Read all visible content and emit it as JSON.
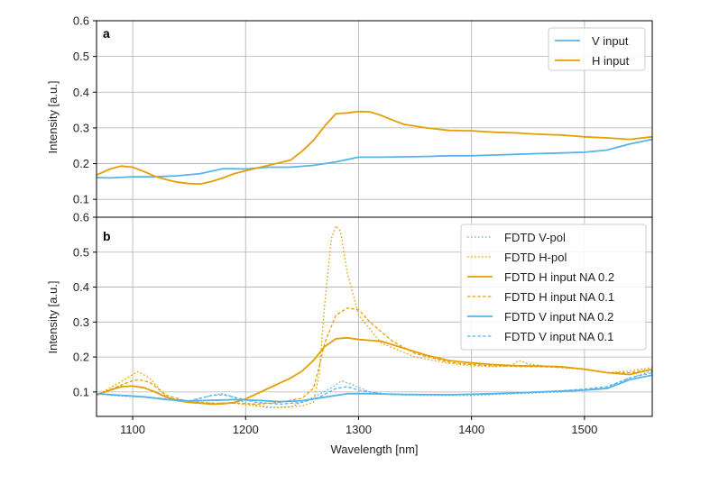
{
  "colors": {
    "blue": "#56B4E9",
    "orange": "#E69F00",
    "grid": "#b0b0b0",
    "axis": "#000000"
  },
  "chart_data": [
    {
      "panel": "a",
      "type": "line",
      "xlabel": "",
      "ylabel": "Intensity [a.u.]",
      "xlim": [
        1068,
        1560
      ],
      "ylim": [
        0.05,
        0.6
      ],
      "yticks": [
        0.1,
        0.2,
        0.3,
        0.4,
        0.5,
        0.6
      ],
      "ytick_labels": [
        "0.1",
        "0.2",
        "0.3",
        "0.4",
        "0.5",
        "0.6"
      ],
      "grid": true,
      "legend_position": "top-right",
      "series": [
        {
          "name": "V input",
          "color": "#56B4E9",
          "style": "solid",
          "x": [
            1068,
            1080,
            1100,
            1120,
            1140,
            1160,
            1180,
            1200,
            1220,
            1240,
            1260,
            1280,
            1300,
            1320,
            1340,
            1360,
            1380,
            1400,
            1420,
            1440,
            1460,
            1480,
            1500,
            1520,
            1540,
            1560
          ],
          "y": [
            0.161,
            0.16,
            0.163,
            0.163,
            0.166,
            0.172,
            0.186,
            0.185,
            0.19,
            0.19,
            0.195,
            0.205,
            0.218,
            0.218,
            0.219,
            0.22,
            0.222,
            0.222,
            0.224,
            0.226,
            0.228,
            0.23,
            0.232,
            0.238,
            0.255,
            0.268
          ]
        },
        {
          "name": "H input",
          "color": "#E69F00",
          "style": "solid",
          "x": [
            1068,
            1080,
            1090,
            1100,
            1110,
            1120,
            1130,
            1140,
            1150,
            1160,
            1170,
            1180,
            1190,
            1200,
            1220,
            1240,
            1250,
            1260,
            1270,
            1280,
            1290,
            1300,
            1310,
            1320,
            1330,
            1340,
            1360,
            1380,
            1400,
            1420,
            1440,
            1460,
            1480,
            1500,
            1520,
            1540,
            1560
          ],
          "y": [
            0.168,
            0.185,
            0.193,
            0.19,
            0.178,
            0.164,
            0.155,
            0.148,
            0.144,
            0.143,
            0.15,
            0.16,
            0.172,
            0.18,
            0.195,
            0.21,
            0.235,
            0.265,
            0.305,
            0.34,
            0.342,
            0.346,
            0.345,
            0.335,
            0.322,
            0.31,
            0.3,
            0.293,
            0.292,
            0.288,
            0.286,
            0.282,
            0.28,
            0.275,
            0.272,
            0.268,
            0.275
          ]
        }
      ]
    },
    {
      "panel": "b",
      "type": "line",
      "xlabel": "Wavelength [nm]",
      "ylabel": "Intensity [a.u.]",
      "xlim": [
        1068,
        1560
      ],
      "ylim": [
        0.03,
        0.6
      ],
      "xticks": [
        1100,
        1200,
        1300,
        1400,
        1500
      ],
      "xtick_labels": [
        "1100",
        "1200",
        "1300",
        "1400",
        "1500"
      ],
      "yticks": [
        0.1,
        0.2,
        0.3,
        0.4,
        0.5,
        0.6
      ],
      "ytick_labels": [
        "0.1",
        "0.2",
        "0.3",
        "0.4",
        "0.5",
        "0.6"
      ],
      "grid": true,
      "legend_position": "top-right",
      "series": [
        {
          "name": "FDTD V-pol",
          "color": "#56B4E9",
          "style": "dotted",
          "x": [
            1068,
            1090,
            1110,
            1130,
            1150,
            1170,
            1180,
            1190,
            1200,
            1220,
            1240,
            1260,
            1275,
            1285,
            1295,
            1310,
            1330,
            1360,
            1400,
            1440,
            1480,
            1520,
            1540,
            1560
          ],
          "y": [
            0.095,
            0.088,
            0.085,
            0.08,
            0.072,
            0.09,
            0.095,
            0.085,
            0.068,
            0.055,
            0.057,
            0.085,
            0.11,
            0.132,
            0.12,
            0.1,
            0.092,
            0.09,
            0.09,
            0.095,
            0.1,
            0.112,
            0.14,
            0.16
          ]
        },
        {
          "name": "FDTD H-pol",
          "color": "#E69F00",
          "style": "dotted",
          "x": [
            1068,
            1090,
            1100,
            1105,
            1115,
            1130,
            1150,
            1170,
            1190,
            1210,
            1230,
            1250,
            1260,
            1265,
            1270,
            1276,
            1280,
            1284,
            1290,
            1300,
            1320,
            1350,
            1380,
            1400,
            1420,
            1435,
            1442,
            1450,
            1470,
            1500,
            1520,
            1540,
            1560
          ],
          "y": [
            0.09,
            0.13,
            0.15,
            0.158,
            0.14,
            0.085,
            0.07,
            0.068,
            0.068,
            0.06,
            0.055,
            0.06,
            0.07,
            0.15,
            0.35,
            0.54,
            0.575,
            0.56,
            0.44,
            0.32,
            0.24,
            0.2,
            0.182,
            0.175,
            0.172,
            0.175,
            0.19,
            0.18,
            0.172,
            0.165,
            0.155,
            0.16,
            0.17
          ]
        },
        {
          "name": "FDTD H input NA 0.2",
          "color": "#E69F00",
          "style": "solid",
          "x": [
            1068,
            1080,
            1090,
            1100,
            1110,
            1120,
            1130,
            1140,
            1150,
            1160,
            1170,
            1180,
            1190,
            1200,
            1210,
            1220,
            1230,
            1240,
            1250,
            1260,
            1270,
            1280,
            1290,
            1300,
            1320,
            1340,
            1360,
            1380,
            1400,
            1420,
            1440,
            1460,
            1480,
            1500,
            1520,
            1540,
            1560
          ],
          "y": [
            0.092,
            0.105,
            0.115,
            0.117,
            0.112,
            0.1,
            0.085,
            0.075,
            0.07,
            0.068,
            0.065,
            0.066,
            0.07,
            0.08,
            0.095,
            0.11,
            0.125,
            0.14,
            0.16,
            0.19,
            0.23,
            0.252,
            0.255,
            0.25,
            0.245,
            0.225,
            0.205,
            0.19,
            0.183,
            0.178,
            0.175,
            0.174,
            0.172,
            0.165,
            0.155,
            0.15,
            0.165
          ]
        },
        {
          "name": "FDTD H input NA 0.1",
          "color": "#E69F00",
          "style": "dashed",
          "x": [
            1068,
            1090,
            1100,
            1105,
            1115,
            1130,
            1150,
            1170,
            1190,
            1210,
            1230,
            1250,
            1260,
            1265,
            1270,
            1280,
            1290,
            1300,
            1310,
            1330,
            1350,
            1380,
            1400,
            1420,
            1440,
            1460,
            1480,
            1500,
            1520,
            1540,
            1560
          ],
          "y": [
            0.09,
            0.12,
            0.132,
            0.135,
            0.128,
            0.09,
            0.072,
            0.068,
            0.068,
            0.065,
            0.07,
            0.082,
            0.11,
            0.17,
            0.24,
            0.32,
            0.34,
            0.335,
            0.3,
            0.245,
            0.21,
            0.185,
            0.178,
            0.175,
            0.173,
            0.172,
            0.17,
            0.165,
            0.155,
            0.155,
            0.165
          ]
        },
        {
          "name": "FDTD V input NA 0.2",
          "color": "#56B4E9",
          "style": "solid",
          "x": [
            1068,
            1090,
            1110,
            1130,
            1150,
            1170,
            1190,
            1210,
            1230,
            1250,
            1270,
            1290,
            1310,
            1340,
            1380,
            1420,
            1460,
            1500,
            1520,
            1540,
            1560
          ],
          "y": [
            0.095,
            0.09,
            0.086,
            0.078,
            0.074,
            0.076,
            0.078,
            0.076,
            0.072,
            0.075,
            0.085,
            0.095,
            0.095,
            0.093,
            0.092,
            0.095,
            0.1,
            0.105,
            0.11,
            0.135,
            0.148
          ]
        },
        {
          "name": "FDTD V input NA 0.1",
          "color": "#56B4E9",
          "style": "dashed",
          "x": [
            1068,
            1090,
            1110,
            1130,
            1150,
            1170,
            1180,
            1190,
            1210,
            1230,
            1250,
            1265,
            1280,
            1290,
            1300,
            1320,
            1350,
            1380,
            1420,
            1460,
            1500,
            1520,
            1540,
            1560
          ],
          "y": [
            0.095,
            0.09,
            0.086,
            0.08,
            0.075,
            0.09,
            0.092,
            0.085,
            0.07,
            0.065,
            0.07,
            0.085,
            0.11,
            0.115,
            0.105,
            0.095,
            0.092,
            0.092,
            0.095,
            0.1,
            0.108,
            0.115,
            0.14,
            0.155
          ]
        }
      ]
    }
  ]
}
